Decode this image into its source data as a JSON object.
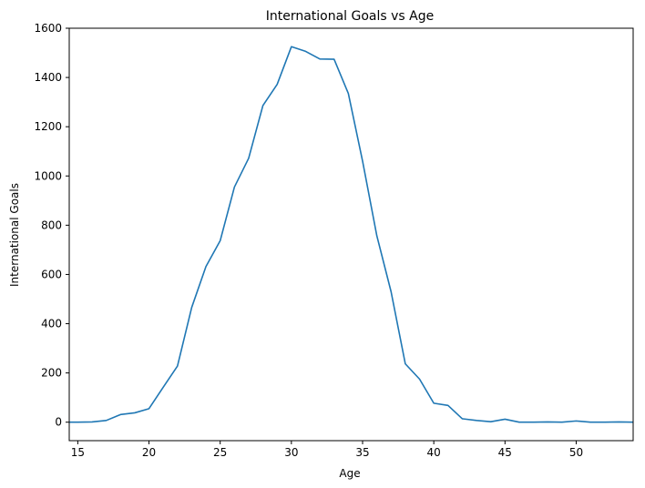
{
  "chart_data": {
    "type": "line",
    "title": "International Goals vs Age",
    "xlabel": "Age",
    "ylabel": "International Goals",
    "xlim": [
      14.4,
      54
    ],
    "ylim": [
      -75,
      1600
    ],
    "xticks": [
      15,
      20,
      25,
      30,
      35,
      40,
      45,
      50
    ],
    "yticks": [
      0,
      200,
      400,
      600,
      800,
      1000,
      1200,
      1400,
      1600
    ],
    "grid": false,
    "legend": "none",
    "series": [
      {
        "color": "#1f77b4",
        "x": [
          14,
          15,
          16,
          17,
          18,
          19,
          20,
          21,
          22,
          23,
          24,
          25,
          26,
          27,
          28,
          29,
          30,
          31,
          32,
          33,
          34,
          35,
          36,
          37,
          38,
          39,
          40,
          41,
          42,
          43,
          44,
          45,
          46,
          47,
          48,
          49,
          50,
          51,
          52,
          53,
          54
        ],
        "y": [
          0,
          0,
          1,
          7,
          31,
          38,
          55,
          142,
          228,
          466,
          632,
          737,
          955,
          1072,
          1286,
          1372,
          1525,
          1506,
          1475,
          1474,
          1335,
          1060,
          757,
          530,
          237,
          175,
          77,
          68,
          14,
          7,
          2,
          12,
          0,
          0,
          1,
          0,
          5,
          0,
          0,
          1,
          0
        ]
      }
    ]
  }
}
